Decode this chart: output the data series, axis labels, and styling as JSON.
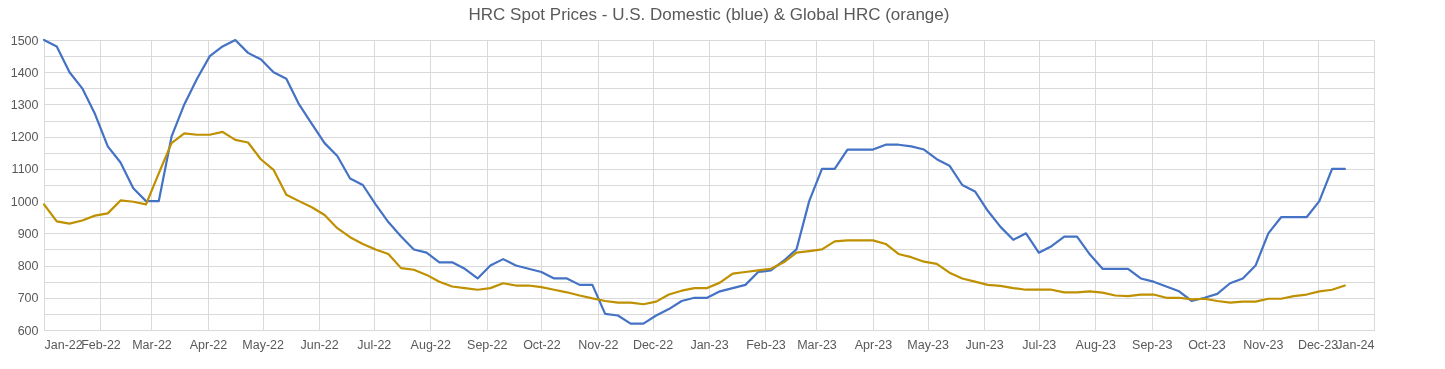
{
  "chart_data": {
    "type": "line",
    "title": "HRC Spot Prices - U.S. Domestic (blue) & Global HRC (orange)",
    "x": [
      "2022-01-01",
      "2022-01-08",
      "2022-01-15",
      "2022-01-22",
      "2022-01-29",
      "2022-02-05",
      "2022-02-12",
      "2022-02-19",
      "2022-02-26",
      "2022-03-05",
      "2022-03-12",
      "2022-03-19",
      "2022-03-26",
      "2022-04-02",
      "2022-04-09",
      "2022-04-16",
      "2022-04-23",
      "2022-04-30",
      "2022-05-07",
      "2022-05-14",
      "2022-05-21",
      "2022-05-28",
      "2022-06-04",
      "2022-06-11",
      "2022-06-18",
      "2022-06-25",
      "2022-07-02",
      "2022-07-09",
      "2022-07-16",
      "2022-07-23",
      "2022-07-30",
      "2022-08-06",
      "2022-08-13",
      "2022-08-20",
      "2022-08-27",
      "2022-09-03",
      "2022-09-10",
      "2022-09-17",
      "2022-09-24",
      "2022-10-01",
      "2022-10-08",
      "2022-10-15",
      "2022-10-22",
      "2022-10-29",
      "2022-11-05",
      "2022-11-12",
      "2022-11-19",
      "2022-11-26",
      "2022-12-03",
      "2022-12-10",
      "2022-12-17",
      "2022-12-24",
      "2022-12-31",
      "2023-01-07",
      "2023-01-14",
      "2023-01-21",
      "2023-01-28",
      "2023-02-04",
      "2023-02-11",
      "2023-02-18",
      "2023-02-25",
      "2023-03-04",
      "2023-03-11",
      "2023-03-18",
      "2023-03-25",
      "2023-04-01",
      "2023-04-08",
      "2023-04-15",
      "2023-04-22",
      "2023-04-29",
      "2023-05-06",
      "2023-05-13",
      "2023-05-20",
      "2023-05-27",
      "2023-06-03",
      "2023-06-10",
      "2023-06-17",
      "2023-06-24",
      "2023-07-01",
      "2023-07-08",
      "2023-07-15",
      "2023-07-22",
      "2023-07-29",
      "2023-08-05",
      "2023-08-12",
      "2023-08-19",
      "2023-08-26",
      "2023-09-02",
      "2023-09-09",
      "2023-09-16",
      "2023-09-23",
      "2023-09-30",
      "2023-10-07",
      "2023-10-14",
      "2023-10-21",
      "2023-10-28",
      "2023-11-04",
      "2023-11-11",
      "2023-11-18",
      "2023-11-25",
      "2023-12-02",
      "2023-12-09",
      "2023-12-16"
    ],
    "series": [
      {
        "color": "#4472c4",
        "values": [
          1500,
          1480,
          1400,
          1350,
          1270,
          1170,
          1120,
          1040,
          1000,
          1000,
          1200,
          1300,
          1380,
          1450,
          1480,
          1500,
          1460,
          1440,
          1400,
          1380,
          1300,
          1240,
          1180,
          1140,
          1070,
          1050,
          990,
          935,
          890,
          850,
          840,
          810,
          810,
          790,
          760,
          800,
          820,
          800,
          790,
          780,
          760,
          760,
          740,
          740,
          650,
          645,
          620,
          620,
          645,
          665,
          690,
          700,
          700,
          720,
          730,
          740,
          780,
          785,
          815,
          850,
          1000,
          1100,
          1100,
          1160,
          1160,
          1160,
          1175,
          1175,
          1170,
          1160,
          1130,
          1110,
          1050,
          1030,
          970,
          920,
          880,
          900,
          840,
          860,
          890,
          890,
          835,
          790,
          790,
          790,
          760,
          750,
          735,
          720,
          690,
          700,
          712,
          745,
          760,
          800,
          900,
          950,
          950,
          950,
          1000,
          1100,
          1100
        ]
      },
      {
        "color": "#bf9000",
        "values": [
          990,
          937,
          930,
          940,
          955,
          962,
          1002,
          998,
          990,
          1086,
          1180,
          1210,
          1206,
          1206,
          1215,
          1190,
          1182,
          1130,
          1097,
          1020,
          1000,
          981,
          957,
          916,
          888,
          867,
          850,
          836,
          792,
          787,
          771,
          750,
          735,
          730,
          725,
          730,
          745,
          738,
          738,
          733,
          725,
          717,
          707,
          698,
          690,
          685,
          685,
          680,
          688,
          710,
          722,
          730,
          730,
          747,
          775,
          780,
          785,
          790,
          810,
          840,
          845,
          850,
          875,
          878,
          878,
          878,
          867,
          836,
          826,
          812,
          805,
          778,
          760,
          750,
          740,
          737,
          730,
          725,
          725,
          725,
          717,
          717,
          720,
          716,
          707,
          705,
          710,
          710,
          700,
          700,
          695,
          697,
          690,
          685,
          688,
          688,
          697,
          697,
          705,
          710,
          720,
          725,
          738
        ]
      }
    ],
    "xlim": [
      "2022-01-01",
      "2024-01-01"
    ],
    "xticks": [
      {
        "value": "2022-01-01",
        "label": "Jan-22"
      },
      {
        "value": "2022-02-01",
        "label": "Feb-22"
      },
      {
        "value": "2022-03-01",
        "label": "Mar-22"
      },
      {
        "value": "2022-04-01",
        "label": "Apr-22"
      },
      {
        "value": "2022-05-01",
        "label": "May-22"
      },
      {
        "value": "2022-06-01",
        "label": "Jun-22"
      },
      {
        "value": "2022-07-01",
        "label": "Jul-22"
      },
      {
        "value": "2022-08-01",
        "label": "Aug-22"
      },
      {
        "value": "2022-09-01",
        "label": "Sep-22"
      },
      {
        "value": "2022-10-01",
        "label": "Oct-22"
      },
      {
        "value": "2022-11-01",
        "label": "Nov-22"
      },
      {
        "value": "2022-12-01",
        "label": "Dec-22"
      },
      {
        "value": "2023-01-01",
        "label": "Jan-23"
      },
      {
        "value": "2023-02-01",
        "label": "Feb-23"
      },
      {
        "value": "2023-03-01",
        "label": "Mar-23"
      },
      {
        "value": "2023-04-01",
        "label": "Apr-23"
      },
      {
        "value": "2023-05-01",
        "label": "May-23"
      },
      {
        "value": "2023-06-01",
        "label": "Jun-23"
      },
      {
        "value": "2023-07-01",
        "label": "Jul-23"
      },
      {
        "value": "2023-08-01",
        "label": "Aug-23"
      },
      {
        "value": "2023-09-01",
        "label": "Sep-23"
      },
      {
        "value": "2023-10-01",
        "label": "Oct-23"
      },
      {
        "value": "2023-11-01",
        "label": "Nov-23"
      },
      {
        "value": "2023-12-01",
        "label": "Dec-23"
      },
      {
        "value": "2024-01-01",
        "label": "Jan-24"
      }
    ],
    "ylim": [
      600,
      1500
    ],
    "yticks": [
      600,
      {
        "value": 650,
        "label": null
      },
      700,
      {
        "value": 750,
        "label": null
      },
      800,
      {
        "value": 850,
        "label": null
      },
      900,
      {
        "value": 950,
        "label": null
      },
      1000,
      {
        "value": 1050,
        "label": null
      },
      1100,
      {
        "value": 1150,
        "label": null
      },
      1200,
      {
        "value": 1250,
        "label": null
      },
      1300,
      {
        "value": 1350,
        "label": null
      },
      1400,
      {
        "value": 1450,
        "label": null
      },
      1500
    ],
    "grid": true,
    "legend": false,
    "line_style": "solid",
    "marker": "none"
  }
}
